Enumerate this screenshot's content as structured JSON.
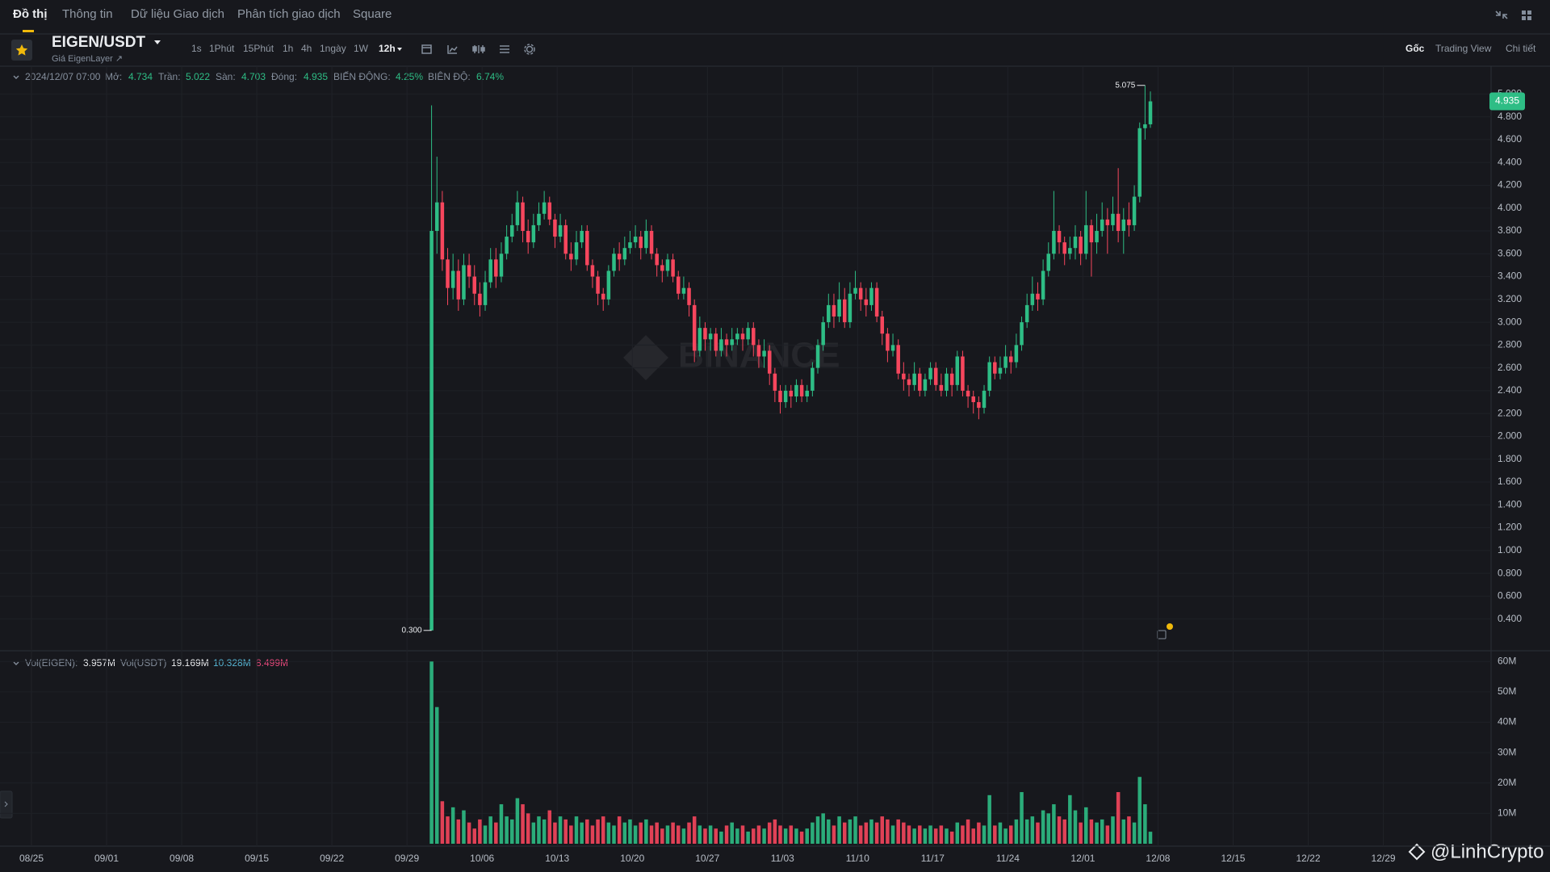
{
  "header": {
    "tabs": [
      "Đồ thị",
      "Thông tin",
      "Dữ liệu Giao dịch",
      "Phân tích giao dịch",
      "Square"
    ],
    "symbol": "EIGEN/USDT",
    "subtitle": "Giá EigenLayer ↗",
    "intervals": [
      "1s",
      "1Phút",
      "15Phút",
      "1h",
      "4h",
      "1ngày",
      "1W",
      "12h"
    ],
    "views": [
      "Gốc",
      "Trading View",
      "Chi tiết"
    ]
  },
  "watermark": "BINANCE",
  "credit": "@LinhCrypto",
  "chart_data": {
    "type": "candlestick",
    "up_color": "#2ebd85",
    "down_color": "#f6465d",
    "grid": true,
    "info": {
      "time": "2024/12/07 07:00",
      "open_label": "Mở:",
      "high_label": "Trần:",
      "low_label": "Sàn:",
      "close_label": "Đóng:",
      "change_label": "BIẾN ĐỘNG:",
      "change": "4.25%",
      "amplitude_label": "BIÊN ĐỘ:",
      "amplitude": "6.74%"
    },
    "x": [
      "10/01",
      "10/01",
      "10/02",
      "10/02",
      "10/03",
      "10/03",
      "10/04",
      "10/04",
      "10/05",
      "10/05",
      "10/06",
      "10/06",
      "10/07",
      "10/07",
      "10/08",
      "10/08",
      "10/09",
      "10/09",
      "10/10",
      "10/10",
      "10/11",
      "10/11",
      "10/12",
      "10/12",
      "10/13",
      "10/13",
      "10/14",
      "10/14",
      "10/15",
      "10/15",
      "10/16",
      "10/16",
      "10/17",
      "10/17",
      "10/18",
      "10/18",
      "10/19",
      "10/19",
      "10/20",
      "10/20",
      "10/21",
      "10/21",
      "10/22",
      "10/22",
      "10/23",
      "10/23",
      "10/24",
      "10/24",
      "10/25",
      "10/25",
      "10/26",
      "10/26",
      "10/27",
      "10/27",
      "10/28",
      "10/28",
      "10/29",
      "10/29",
      "10/30",
      "10/30",
      "10/31",
      "10/31",
      "11/01",
      "11/01",
      "11/02",
      "11/02",
      "11/03",
      "11/03",
      "11/04",
      "11/04",
      "11/05",
      "11/05",
      "11/06",
      "11/06",
      "11/07",
      "11/07",
      "11/08",
      "11/08",
      "11/09",
      "11/09",
      "11/10",
      "11/10",
      "11/11",
      "11/11",
      "11/12",
      "11/12",
      "11/13",
      "11/13",
      "11/14",
      "11/14",
      "11/15",
      "11/15",
      "11/16",
      "11/16",
      "11/17",
      "11/17",
      "11/18",
      "11/18",
      "11/19",
      "11/19",
      "11/20",
      "11/20",
      "11/21",
      "11/21",
      "11/22",
      "11/22",
      "11/23",
      "11/23",
      "11/24",
      "11/24",
      "11/25",
      "11/25",
      "11/26",
      "11/26",
      "11/27",
      "11/27",
      "11/28",
      "11/28",
      "11/29",
      "11/29",
      "11/30",
      "11/30",
      "12/01",
      "12/01",
      "12/02",
      "12/02",
      "12/03",
      "12/03",
      "12/04",
      "12/04",
      "12/05",
      "12/05",
      "12/06",
      "12/06",
      "12/07"
    ],
    "open": [
      0.3,
      3.8,
      4.05,
      3.55,
      3.3,
      3.45,
      3.2,
      3.5,
      3.4,
      3.25,
      3.15,
      3.35,
      3.55,
      3.4,
      3.6,
      3.75,
      3.85,
      4.05,
      3.8,
      3.7,
      3.85,
      3.95,
      4.05,
      3.9,
      3.75,
      3.85,
      3.6,
      3.55,
      3.7,
      3.8,
      3.5,
      3.4,
      3.25,
      3.2,
      3.45,
      3.6,
      3.55,
      3.65,
      3.7,
      3.75,
      3.65,
      3.8,
      3.6,
      3.5,
      3.45,
      3.55,
      3.4,
      3.25,
      3.3,
      3.15,
      2.75,
      2.95,
      2.85,
      2.9,
      2.75,
      2.85,
      2.8,
      2.85,
      2.9,
      2.85,
      2.95,
      2.8,
      2.7,
      2.75,
      2.55,
      2.4,
      2.3,
      2.4,
      2.35,
      2.45,
      2.35,
      2.4,
      2.6,
      2.8,
      3.0,
      3.15,
      3.05,
      3.2,
      3.0,
      3.25,
      3.3,
      3.2,
      3.15,
      3.3,
      3.05,
      2.9,
      2.75,
      2.8,
      2.55,
      2.5,
      2.45,
      2.55,
      2.4,
      2.5,
      2.6,
      2.45,
      2.4,
      2.55,
      2.45,
      2.7,
      2.4,
      2.35,
      2.3,
      2.25,
      2.4,
      2.65,
      2.55,
      2.6,
      2.7,
      2.65,
      2.8,
      3.0,
      3.15,
      3.25,
      3.2,
      3.45,
      3.6,
      3.8,
      3.7,
      3.6,
      3.65,
      3.75,
      3.6,
      3.85,
      3.7,
      3.8,
      3.9,
      3.85,
      3.95,
      3.8,
      3.9,
      3.85,
      4.1,
      4.7,
      4.734
    ],
    "high": [
      4.9,
      4.45,
      4.15,
      3.65,
      3.6,
      3.55,
      3.6,
      3.6,
      3.5,
      3.35,
      3.45,
      3.65,
      3.65,
      3.7,
      3.85,
      3.95,
      4.15,
      4.1,
      3.9,
      3.95,
      4.05,
      4.15,
      4.1,
      3.95,
      3.95,
      3.9,
      3.7,
      3.8,
      3.85,
      3.85,
      3.55,
      3.45,
      3.3,
      3.5,
      3.65,
      3.7,
      3.75,
      3.8,
      3.85,
      3.8,
      3.9,
      3.85,
      3.65,
      3.55,
      3.6,
      3.6,
      3.45,
      3.4,
      3.35,
      3.2,
      3.05,
      3.0,
      2.95,
      2.95,
      2.95,
      2.9,
      2.95,
      2.95,
      2.95,
      3.0,
      3.0,
      2.85,
      2.85,
      2.8,
      2.6,
      2.45,
      2.45,
      2.45,
      2.5,
      2.5,
      2.45,
      2.65,
      2.85,
      3.05,
      3.25,
      3.25,
      3.35,
      3.3,
      3.35,
      3.45,
      3.35,
      3.3,
      3.35,
      3.35,
      3.1,
      2.95,
      2.9,
      2.85,
      2.65,
      2.55,
      2.65,
      2.6,
      2.55,
      2.65,
      2.65,
      2.55,
      2.6,
      2.6,
      2.75,
      2.75,
      2.45,
      2.4,
      2.35,
      2.45,
      2.7,
      2.7,
      2.7,
      2.8,
      2.75,
      2.9,
      3.05,
      3.25,
      3.4,
      3.35,
      3.55,
      3.7,
      4.15,
      3.85,
      3.75,
      3.75,
      3.85,
      3.8,
      4.15,
      3.9,
      3.95,
      4.05,
      4.0,
      4.1,
      4.35,
      4.0,
      4.05,
      4.2,
      4.75,
      5.075,
      5.022
    ],
    "low": [
      0.3,
      3.6,
      3.45,
      3.15,
      3.2,
      3.1,
      3.15,
      3.3,
      3.15,
      3.05,
      3.1,
      3.3,
      3.3,
      3.35,
      3.55,
      3.7,
      3.8,
      3.7,
      3.6,
      3.65,
      3.8,
      3.9,
      3.85,
      3.65,
      3.7,
      3.55,
      3.45,
      3.5,
      3.65,
      3.45,
      3.3,
      3.15,
      3.1,
      3.15,
      3.4,
      3.45,
      3.5,
      3.6,
      3.65,
      3.55,
      3.6,
      3.55,
      3.4,
      3.35,
      3.4,
      3.35,
      3.2,
      3.2,
      3.05,
      2.65,
      2.7,
      2.75,
      2.75,
      2.7,
      2.7,
      2.7,
      2.75,
      2.8,
      2.75,
      2.8,
      2.7,
      2.6,
      2.6,
      2.45,
      2.3,
      2.2,
      2.25,
      2.25,
      2.3,
      2.3,
      2.3,
      2.35,
      2.55,
      2.75,
      2.95,
      2.95,
      3.0,
      2.95,
      2.95,
      3.2,
      3.1,
      3.05,
      3.1,
      3.0,
      2.8,
      2.65,
      2.7,
      2.5,
      2.4,
      2.35,
      2.4,
      2.35,
      2.35,
      2.45,
      2.4,
      2.35,
      2.35,
      2.35,
      2.4,
      2.35,
      2.25,
      2.2,
      2.15,
      2.2,
      2.35,
      2.5,
      2.5,
      2.55,
      2.55,
      2.6,
      2.75,
      2.95,
      3.1,
      3.1,
      3.15,
      3.4,
      3.55,
      3.6,
      3.5,
      3.55,
      3.55,
      3.5,
      3.55,
      3.4,
      3.6,
      3.75,
      3.6,
      3.8,
      3.7,
      3.6,
      3.75,
      3.8,
      4.05,
      4.6,
      4.703
    ],
    "close": [
      3.8,
      4.05,
      3.55,
      3.3,
      3.45,
      3.2,
      3.5,
      3.4,
      3.25,
      3.15,
      3.35,
      3.55,
      3.4,
      3.6,
      3.75,
      3.85,
      4.05,
      3.8,
      3.7,
      3.85,
      3.95,
      4.05,
      3.9,
      3.75,
      3.85,
      3.6,
      3.55,
      3.7,
      3.8,
      3.5,
      3.4,
      3.25,
      3.2,
      3.45,
      3.6,
      3.55,
      3.65,
      3.7,
      3.75,
      3.65,
      3.8,
      3.6,
      3.5,
      3.45,
      3.55,
      3.4,
      3.25,
      3.3,
      3.15,
      2.75,
      2.95,
      2.85,
      2.9,
      2.75,
      2.85,
      2.8,
      2.85,
      2.9,
      2.85,
      2.95,
      2.8,
      2.7,
      2.75,
      2.55,
      2.4,
      2.3,
      2.4,
      2.35,
      2.45,
      2.35,
      2.4,
      2.6,
      2.8,
      3.0,
      3.15,
      3.05,
      3.2,
      3.0,
      3.25,
      3.3,
      3.2,
      3.15,
      3.3,
      3.05,
      2.9,
      2.75,
      2.8,
      2.55,
      2.5,
      2.45,
      2.55,
      2.4,
      2.5,
      2.6,
      2.45,
      2.4,
      2.55,
      2.45,
      2.7,
      2.4,
      2.35,
      2.3,
      2.25,
      2.4,
      2.65,
      2.55,
      2.6,
      2.7,
      2.65,
      2.8,
      3.0,
      3.15,
      3.25,
      3.2,
      3.45,
      3.6,
      3.8,
      3.7,
      3.6,
      3.65,
      3.75,
      3.6,
      3.85,
      3.7,
      3.8,
      3.9,
      3.85,
      3.95,
      3.8,
      3.9,
      3.85,
      4.1,
      4.7,
      4.734,
      4.935
    ],
    "ylim": [
      0.15,
      5.25
    ],
    "yticks": [
      {
        "value": 0.4,
        "label": "0.400"
      },
      {
        "value": 0.6,
        "label": "0.600"
      },
      {
        "value": 0.8,
        "label": "0.800"
      },
      {
        "value": 1.0,
        "label": "1.000"
      },
      {
        "value": 1.2,
        "label": "1.200"
      },
      {
        "value": 1.4,
        "label": "1.400"
      },
      {
        "value": 1.6,
        "label": "1.600"
      },
      {
        "value": 1.8,
        "label": "1.800"
      },
      {
        "value": 2.0,
        "label": "2.000"
      },
      {
        "value": 2.2,
        "label": "2.200"
      },
      {
        "value": 2.4,
        "label": "2.400"
      },
      {
        "value": 2.6,
        "label": "2.600"
      },
      {
        "value": 2.8,
        "label": "2.800"
      },
      {
        "value": 3.0,
        "label": "3.000"
      },
      {
        "value": 3.2,
        "label": "3.200"
      },
      {
        "value": 3.4,
        "label": "3.400"
      },
      {
        "value": 3.6,
        "label": "3.600"
      },
      {
        "value": 3.8,
        "label": "3.800"
      },
      {
        "value": 4.0,
        "label": "4.000"
      },
      {
        "value": 4.2,
        "label": "4.200"
      },
      {
        "value": 4.4,
        "label": "4.400"
      },
      {
        "value": 4.6,
        "label": "4.600"
      },
      {
        "value": 4.8,
        "label": "4.800"
      },
      {
        "value": 5.0,
        "label": "5.000"
      }
    ],
    "xticks": [
      "08/25",
      "09/01",
      "09/08",
      "09/15",
      "09/22",
      "09/29",
      "10/06",
      "10/13",
      "10/20",
      "10/27",
      "11/03",
      "11/10",
      "11/17",
      "11/24",
      "12/01",
      "12/08",
      "12/15",
      "12/22",
      "12/29"
    ],
    "annotations": [
      {
        "value": 5.075,
        "label": "5.075"
      },
      {
        "value": 0.3,
        "label": "0.300"
      }
    ],
    "volume": {
      "values": [
        60,
        45,
        14,
        9,
        12,
        8,
        11,
        7,
        5,
        8,
        6,
        9,
        7,
        13,
        9,
        8,
        15,
        13,
        10,
        7,
        9,
        8,
        11,
        7,
        9,
        8,
        6,
        9,
        7,
        8,
        6,
        8,
        9,
        7,
        6,
        9,
        7,
        8,
        6,
        7,
        8,
        6,
        7,
        5,
        6,
        7,
        6,
        5,
        7,
        9,
        6,
        5,
        6,
        5,
        4,
        6,
        7,
        5,
        6,
        4,
        5,
        6,
        5,
        7,
        8,
        6,
        5,
        6,
        5,
        4,
        5,
        7,
        9,
        10,
        8,
        6,
        9,
        7,
        8,
        9,
        6,
        7,
        8,
        7,
        9,
        8,
        6,
        8,
        7,
        6,
        5,
        6,
        5,
        6,
        5,
        6,
        5,
        4,
        7,
        6,
        8,
        5,
        7,
        6,
        16,
        6,
        7,
        5,
        6,
        8,
        17,
        8,
        9,
        7,
        11,
        10,
        13,
        9,
        8,
        16,
        11,
        7,
        12,
        8,
        7,
        8,
        6,
        9,
        17,
        8,
        9,
        7,
        22,
        13,
        3.957
      ],
      "ylim": [
        0,
        63
      ],
      "yticks": [
        {
          "value": 10,
          "label": "10M"
        },
        {
          "value": 20,
          "label": "20M"
        },
        {
          "value": 30,
          "label": "30M"
        },
        {
          "value": 40,
          "label": "40M"
        },
        {
          "value": 50,
          "label": "50M"
        },
        {
          "value": 60,
          "label": "60M"
        }
      ],
      "info": {
        "base_label": "Vol(EIGEN):",
        "base_value": "3.957M",
        "quote_label": "Vol(USDT)",
        "quote_value": "19.169M",
        "ma_fast": "10.328M",
        "ma_slow": "8.499M"
      }
    }
  }
}
